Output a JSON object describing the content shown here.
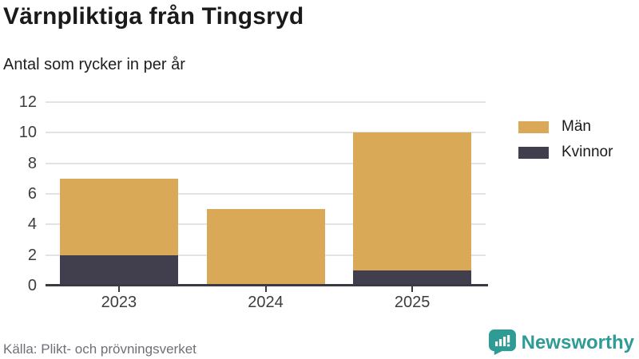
{
  "header": {
    "title": "Värnpliktiga från Tingsryd",
    "subtitle": "Antal som rycker in per år"
  },
  "chart_data": {
    "type": "bar",
    "stacked": true,
    "title": "Värnpliktiga från Tingsryd",
    "subtitle": "Antal som rycker in per år",
    "categories": [
      "2023",
      "2024",
      "2025"
    ],
    "series": [
      {
        "name": "Män",
        "color": "#d9a957",
        "values": [
          5,
          5,
          9
        ]
      },
      {
        "name": "Kvinnor",
        "color": "#413f4e",
        "values": [
          2,
          0,
          1
        ]
      }
    ],
    "totals": [
      7,
      5,
      10
    ],
    "ylim": [
      0,
      12
    ],
    "yticks": [
      0,
      2,
      4,
      6,
      8,
      10,
      12
    ],
    "grid": true,
    "legend_position": "right",
    "xlabel": "",
    "ylabel": ""
  },
  "colors": {
    "man": "#d9a957",
    "kvinnor": "#413f4e",
    "gridline": "#e3e3e3",
    "axis": "#3b3a44",
    "tick_text": "#3d3d3d",
    "brand_teal": "#2f9b95"
  },
  "footer": {
    "source": "Källa: Plikt- och prövningsverket",
    "brand": "Newsworthy"
  }
}
